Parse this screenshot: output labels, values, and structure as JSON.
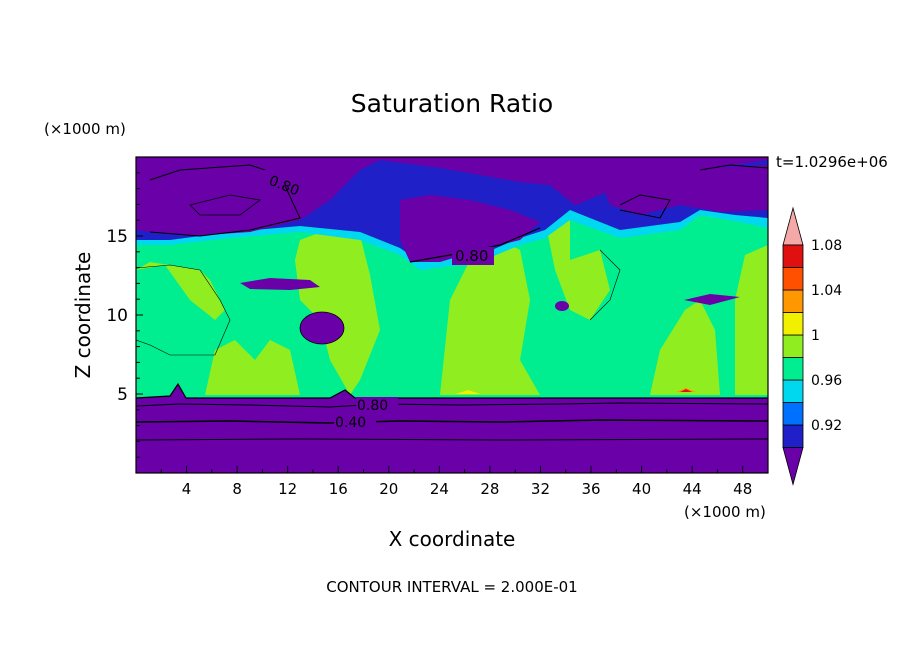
{
  "chart_data": {
    "type": "heatmap",
    "title": "Saturation Ratio",
    "xlabel": "X coordinate",
    "ylabel": "Z coordinate",
    "x_unit": "(×1000 m)",
    "y_unit": "(×1000 m)",
    "time_label": "t=1.0296e+06",
    "footer": "CONTOUR INTERVAL = 2.000E-01",
    "xlim": [
      0,
      50
    ],
    "ylim": [
      0,
      20
    ],
    "x_ticks": [
      "4",
      "8",
      "12",
      "16",
      "20",
      "24",
      "28",
      "32",
      "36",
      "40",
      "44",
      "48"
    ],
    "y_ticks": [
      "5",
      "10",
      "15"
    ],
    "contour_labels": [
      "0.80",
      "0.80",
      "0.80",
      "0.40"
    ],
    "colorbar": {
      "labels": [
        "0.92",
        "0.96",
        "1",
        "1.04",
        "1.08"
      ],
      "colors": [
        "#6a00a8",
        "#2020c8",
        "#0070ff",
        "#00d8f0",
        "#00ee90",
        "#90ee20",
        "#f0f000",
        "#ff9800",
        "#ff5000",
        "#e01010",
        "#f4a8a8"
      ]
    }
  }
}
